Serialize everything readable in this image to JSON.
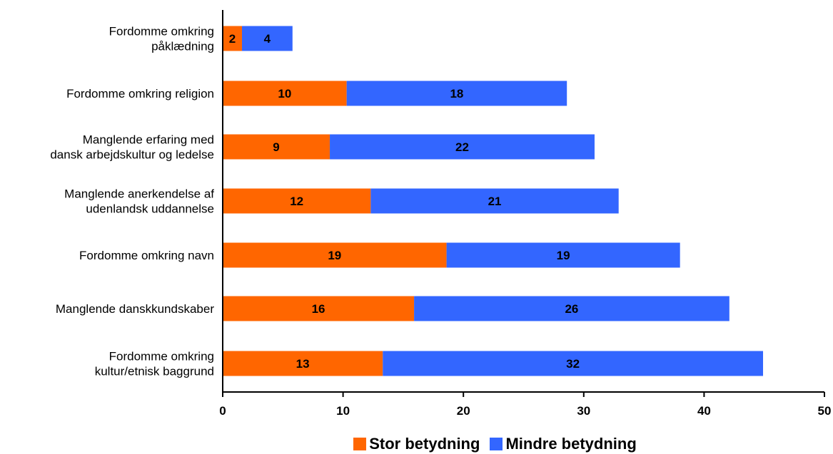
{
  "chart_data": {
    "type": "bar",
    "orientation": "horizontal",
    "stacked": true,
    "categories": [
      [
        "Fordomme omkring",
        "påklædning"
      ],
      [
        "Fordomme omkring religion"
      ],
      [
        "Manglende erfaring med",
        "dansk arbejdskultur og ledelse"
      ],
      [
        "Manglende anerkendelse af",
        "udenlandsk uddannelse"
      ],
      [
        "Fordomme omkring navn"
      ],
      [
        "Manglende danskkundskaber"
      ],
      [
        "Fordomme omkring",
        "kultur/etnisk baggrund"
      ]
    ],
    "series": [
      {
        "name": "Stor betydning",
        "color": "#ff6600",
        "values": [
          2,
          10,
          9,
          12,
          19,
          16,
          13
        ],
        "plotted": [
          1.6,
          10.3,
          8.9,
          12.3,
          18.6,
          15.9,
          13.3
        ]
      },
      {
        "name": "Mindre betydning",
        "color": "#3366ff",
        "values": [
          4,
          18,
          22,
          21,
          19,
          26,
          32
        ],
        "plotted": [
          4.2,
          18.3,
          22.0,
          20.6,
          19.4,
          26.2,
          31.6
        ]
      }
    ],
    "xlim": [
      0,
      50
    ],
    "xticks": [
      0,
      10,
      20,
      30,
      40,
      50
    ],
    "grid": false,
    "legend_position": "bottom"
  }
}
